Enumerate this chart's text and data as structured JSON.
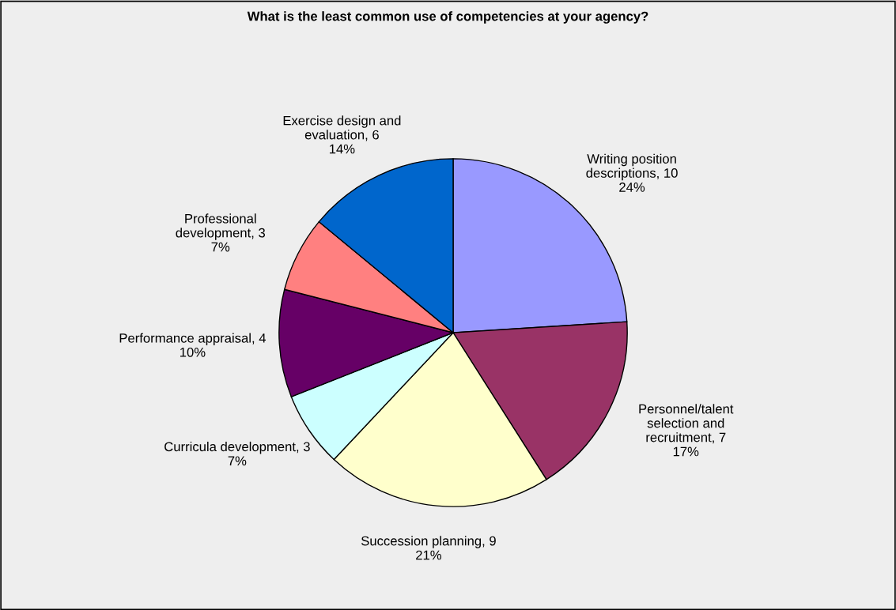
{
  "chart_data": {
    "type": "pie",
    "title": "What is the least common use of competencies at your agency?",
    "categories": [
      "Writing position descriptions, 10",
      "Personnel/talent selection and recruitment, 7",
      "Succession planning, 9",
      "Curricula development, 3",
      "Performance appraisal, 4",
      "Professional development, 3",
      "Exercise design and evaluation, 6"
    ],
    "values": [
      24,
      17,
      21,
      7,
      10,
      7,
      14
    ],
    "colors": [
      "#9999ff",
      "#993366",
      "#ffffcc",
      "#ccffff",
      "#660066",
      "#ff8080",
      "#0066cc"
    ],
    "value_labels": [
      "24%",
      "17%",
      "21%",
      "7%",
      "10%",
      "7%",
      "14%"
    ],
    "legend": false
  }
}
